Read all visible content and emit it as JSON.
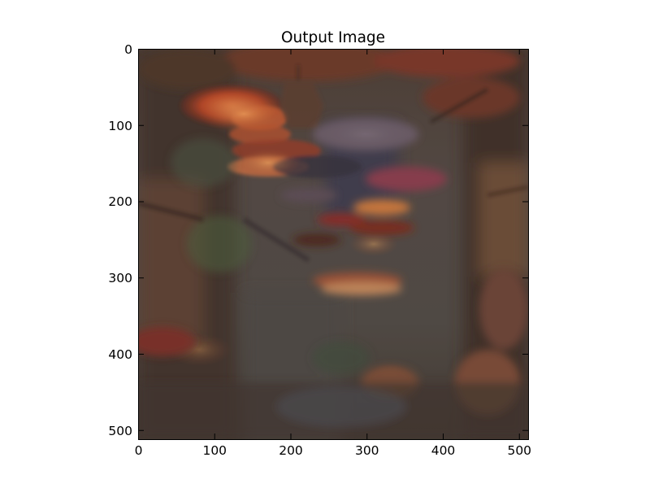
{
  "figure": {
    "title": "Output Image",
    "image_description_icon": "blurred-street-scene-with-red-paper-umbrellas",
    "x_axis": {
      "min": 0,
      "max": 512,
      "ticks": [
        "0",
        "100",
        "200",
        "300",
        "400",
        "500"
      ]
    },
    "y_axis": {
      "min": 0,
      "max": 512,
      "inverted": true,
      "ticks": [
        "0",
        "100",
        "200",
        "300",
        "400",
        "500"
      ]
    },
    "colors": {
      "background": "#ffffff",
      "frame": "#000000",
      "umbrella_red": "#b8401f",
      "warm_light": "#e07a3a",
      "shadow": "#2a2420",
      "wall_brown": "#5a4030"
    }
  }
}
